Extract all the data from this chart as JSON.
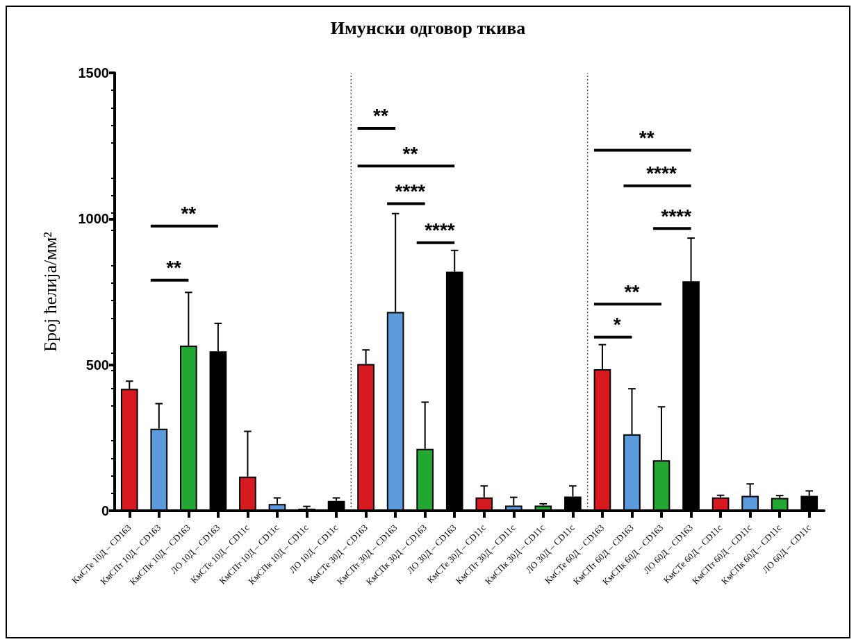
{
  "chart_data": {
    "type": "bar",
    "title": "Имунски одговор ткива",
    "ylabel": "Број ћелија/мм²",
    "categories": [
      "КмСТе 10Д – CD163",
      "КмСПт 10Д – CD163",
      "КмСПк 10Д – CD163",
      "ЛО 10Д – CD163",
      "КмСТе 10Д – CD11c",
      "КмСПт 10Д – CD11c",
      "КмСПк 10Д – CD11c",
      "ЛО 10Д – CD11c",
      "КмСТе 30Д – CD163",
      "КмСПт 30Д – CD163",
      "КмСПк 30Д – CD163",
      "ЛО 30Д – CD163",
      "КмСТе 30Д – CD11c",
      "КмСПт 30Д – CD11c",
      "КмСПк 30Д – CD11c",
      "ЛО 30Д – CD11c",
      "КмСТе 60Д – CD163",
      "КмСПт 60Д – CD163",
      "КмСПк 60Д – CD163",
      "ЛО 60Д – CD163",
      "КмСТе 60Д – CD11c",
      "КмСПт 60Д – CD11c",
      "КмСПк 60Д – CD11c",
      "ЛО 60Д – CD11c"
    ],
    "values": [
      418,
      281,
      566,
      546,
      117,
      23,
      7,
      34,
      503,
      681,
      212,
      819,
      46,
      18,
      18,
      49,
      485,
      262,
      173,
      786,
      46,
      51,
      44,
      51
    ],
    "errors": [
      [
        418,
        444
      ],
      [
        281,
        367
      ],
      [
        566,
        748
      ],
      [
        546,
        642
      ],
      [
        117,
        272
      ],
      [
        23,
        44
      ],
      [
        7,
        15
      ],
      [
        34,
        44
      ],
      [
        503,
        551
      ],
      [
        681,
        1018
      ],
      [
        212,
        372
      ],
      [
        819,
        892
      ],
      [
        46,
        85
      ],
      [
        18,
        46
      ],
      [
        18,
        24
      ],
      [
        49,
        85
      ],
      [
        485,
        569
      ],
      [
        262,
        418
      ],
      [
        173,
        356
      ],
      [
        786,
        934
      ],
      [
        46,
        53
      ],
      [
        51,
        92
      ],
      [
        44,
        52
      ],
      [
        51,
        68
      ]
    ],
    "colors": [
      "#d71920",
      "#5b9bdc",
      "#22a832",
      "#000000",
      "#d71920",
      "#5b9bdc",
      "#22a832",
      "#000000",
      "#d71920",
      "#5b9bdc",
      "#22a832",
      "#000000",
      "#d71920",
      "#5b9bdc",
      "#22a832",
      "#000000",
      "#d71920",
      "#5b9bdc",
      "#22a832",
      "#000000",
      "#d71920",
      "#5b9bdc",
      "#22a832",
      "#000000"
    ],
    "ylim": [
      0,
      1500
    ],
    "yticks": [
      0,
      500,
      1000,
      1500
    ],
    "annotations": [
      "**",
      "**",
      "**",
      "**",
      "****",
      "****",
      "**",
      "****",
      "****",
      "**",
      "*"
    ]
  }
}
